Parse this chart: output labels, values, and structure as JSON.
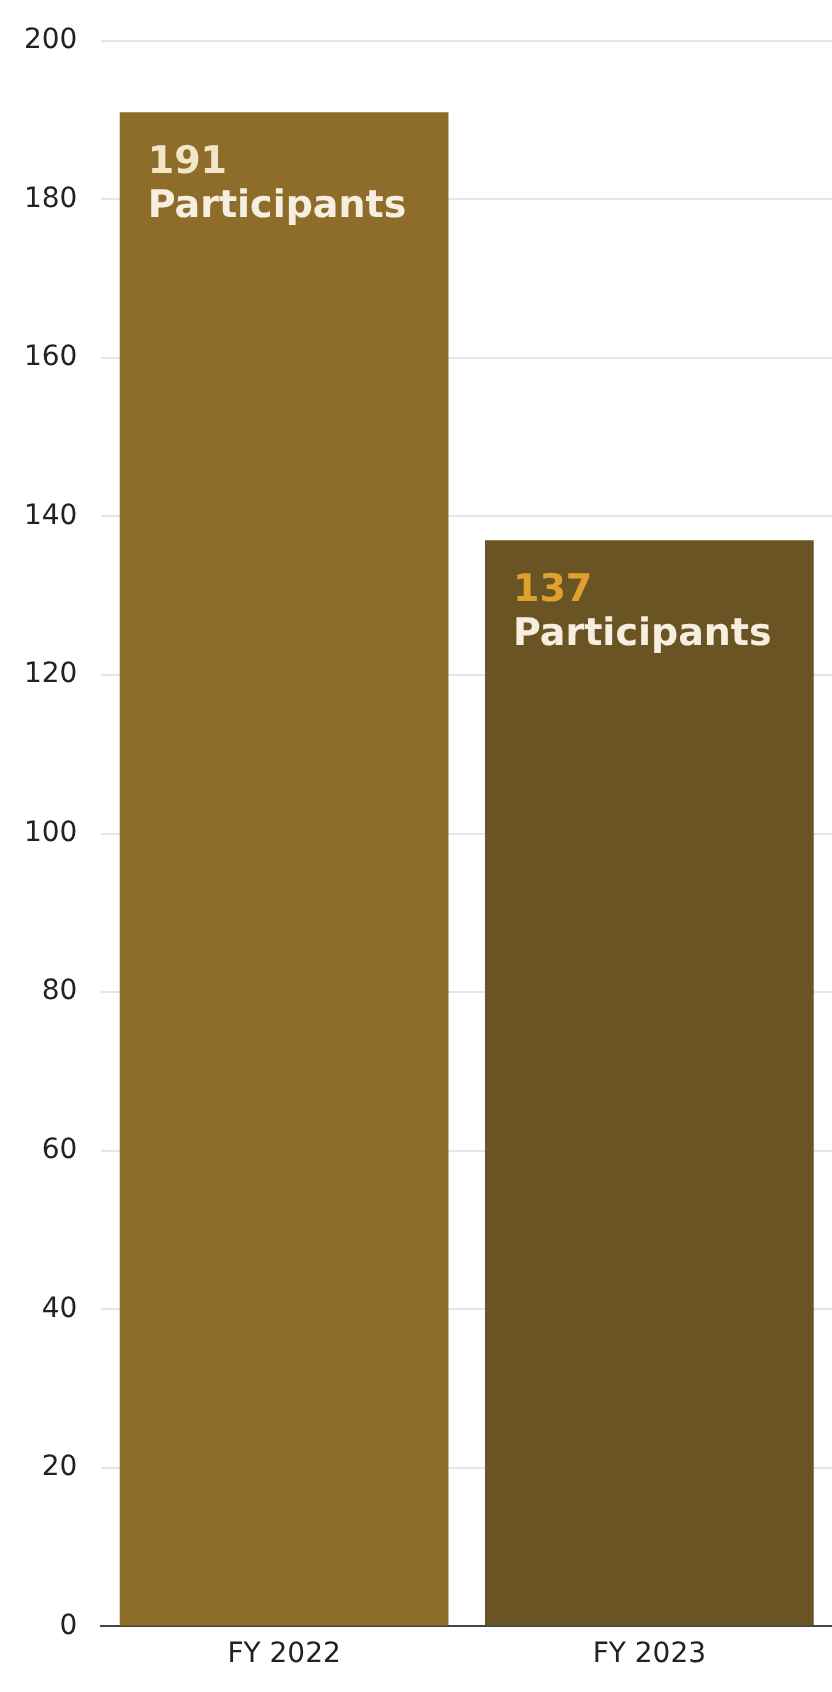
{
  "chart_data": {
    "type": "bar",
    "categories": [
      "FY 2022",
      "FY 2023"
    ],
    "values": [
      191,
      137
    ],
    "colors": [
      "#8e6c2a",
      "#6b5424"
    ],
    "value_labels": [
      "191 Participants",
      "137 Participants"
    ],
    "ylim": [
      0,
      200
    ],
    "yticks": [
      0,
      20,
      40,
      60,
      80,
      100,
      120,
      140,
      160,
      180,
      200
    ],
    "grid": "y"
  }
}
